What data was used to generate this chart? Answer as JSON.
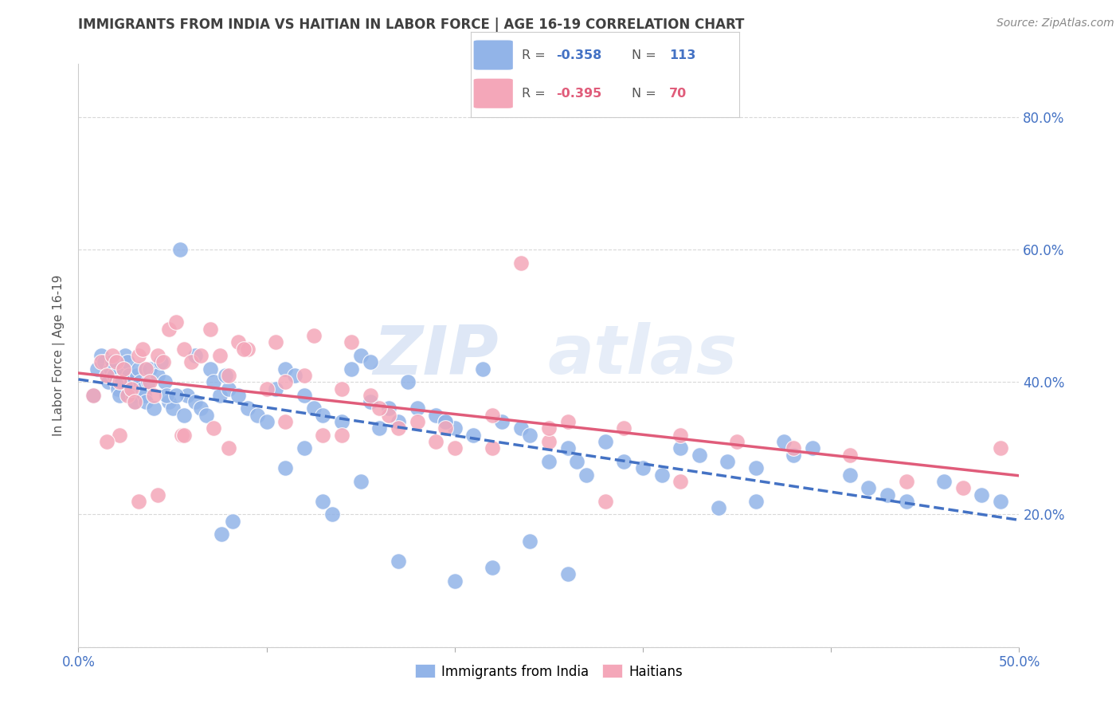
{
  "title": "IMMIGRANTS FROM INDIA VS HAITIAN IN LABOR FORCE | AGE 16-19 CORRELATION CHART",
  "source": "Source: ZipAtlas.com",
  "ylabel": "In Labor Force | Age 16-19",
  "y_ticks": [
    0.0,
    0.2,
    0.4,
    0.6,
    0.8
  ],
  "y_tick_labels": [
    "",
    "20.0%",
    "40.0%",
    "60.0%",
    "80.0%"
  ],
  "xlim": [
    0.0,
    0.5
  ],
  "ylim": [
    0.0,
    0.88
  ],
  "india_R": "-0.358",
  "india_N": "113",
  "haiti_R": "-0.395",
  "haiti_N": "70",
  "india_color": "#92b4e8",
  "haiti_color": "#f4a7b9",
  "india_line_color": "#4472C4",
  "haiti_line_color": "#E05C7A",
  "legend_label_india": "Immigrants from India",
  "legend_label_haiti": "Haitians",
  "watermark_zip": "ZIP",
  "watermark_atlas": "atlas",
  "india_x": [
    0.008,
    0.01,
    0.012,
    0.014,
    0.015,
    0.016,
    0.017,
    0.018,
    0.019,
    0.02,
    0.021,
    0.022,
    0.023,
    0.024,
    0.025,
    0.026,
    0.027,
    0.028,
    0.029,
    0.03,
    0.031,
    0.032,
    0.033,
    0.034,
    0.035,
    0.036,
    0.037,
    0.038,
    0.04,
    0.042,
    0.044,
    0.046,
    0.048,
    0.05,
    0.054,
    0.058,
    0.062,
    0.065,
    0.07,
    0.075,
    0.08,
    0.085,
    0.09,
    0.095,
    0.1,
    0.105,
    0.11,
    0.115,
    0.12,
    0.125,
    0.13,
    0.14,
    0.145,
    0.15,
    0.16,
    0.165,
    0.17,
    0.175,
    0.18,
    0.19,
    0.2,
    0.21,
    0.215,
    0.225,
    0.235,
    0.24,
    0.25,
    0.26,
    0.27,
    0.28,
    0.29,
    0.3,
    0.31,
    0.32,
    0.33,
    0.345,
    0.36,
    0.375,
    0.39,
    0.41,
    0.42,
    0.43,
    0.44,
    0.46,
    0.48,
    0.49,
    0.38,
    0.36,
    0.34,
    0.26,
    0.24,
    0.22,
    0.2,
    0.17,
    0.15,
    0.13,
    0.12,
    0.11,
    0.056,
    0.068,
    0.072,
    0.078,
    0.155,
    0.195,
    0.195,
    0.265,
    0.155,
    0.047,
    0.052,
    0.062,
    0.076,
    0.082,
    0.135
  ],
  "india_y": [
    0.38,
    0.42,
    0.44,
    0.43,
    0.41,
    0.4,
    0.42,
    0.43,
    0.41,
    0.4,
    0.39,
    0.38,
    0.4,
    0.42,
    0.44,
    0.43,
    0.41,
    0.4,
    0.38,
    0.37,
    0.41,
    0.42,
    0.4,
    0.39,
    0.38,
    0.37,
    0.4,
    0.42,
    0.36,
    0.41,
    0.43,
    0.4,
    0.37,
    0.36,
    0.6,
    0.38,
    0.37,
    0.36,
    0.42,
    0.38,
    0.39,
    0.38,
    0.36,
    0.35,
    0.34,
    0.39,
    0.42,
    0.41,
    0.38,
    0.36,
    0.35,
    0.34,
    0.42,
    0.44,
    0.33,
    0.36,
    0.34,
    0.4,
    0.36,
    0.35,
    0.33,
    0.32,
    0.42,
    0.34,
    0.33,
    0.32,
    0.28,
    0.3,
    0.26,
    0.31,
    0.28,
    0.27,
    0.26,
    0.3,
    0.29,
    0.28,
    0.27,
    0.31,
    0.3,
    0.26,
    0.24,
    0.23,
    0.22,
    0.25,
    0.23,
    0.22,
    0.29,
    0.22,
    0.21,
    0.11,
    0.16,
    0.12,
    0.1,
    0.13,
    0.25,
    0.22,
    0.3,
    0.27,
    0.35,
    0.35,
    0.4,
    0.41,
    0.37,
    0.34,
    0.34,
    0.28,
    0.43,
    0.38,
    0.38,
    0.44,
    0.17,
    0.19,
    0.2
  ],
  "haiti_x": [
    0.008,
    0.012,
    0.015,
    0.018,
    0.02,
    0.022,
    0.024,
    0.026,
    0.028,
    0.03,
    0.032,
    0.034,
    0.036,
    0.038,
    0.04,
    0.042,
    0.045,
    0.048,
    0.052,
    0.056,
    0.06,
    0.065,
    0.07,
    0.075,
    0.08,
    0.085,
    0.09,
    0.1,
    0.11,
    0.12,
    0.13,
    0.14,
    0.155,
    0.165,
    0.18,
    0.195,
    0.22,
    0.235,
    0.26,
    0.29,
    0.32,
    0.35,
    0.38,
    0.41,
    0.44,
    0.47,
    0.49,
    0.25,
    0.2,
    0.17,
    0.145,
    0.125,
    0.105,
    0.088,
    0.072,
    0.055,
    0.042,
    0.032,
    0.022,
    0.015,
    0.056,
    0.08,
    0.11,
    0.14,
    0.16,
    0.19,
    0.22,
    0.25,
    0.28,
    0.32
  ],
  "haiti_y": [
    0.38,
    0.43,
    0.41,
    0.44,
    0.43,
    0.4,
    0.42,
    0.38,
    0.39,
    0.37,
    0.44,
    0.45,
    0.42,
    0.4,
    0.38,
    0.44,
    0.43,
    0.48,
    0.49,
    0.45,
    0.43,
    0.44,
    0.48,
    0.44,
    0.41,
    0.46,
    0.45,
    0.39,
    0.4,
    0.41,
    0.32,
    0.39,
    0.38,
    0.35,
    0.34,
    0.33,
    0.35,
    0.58,
    0.34,
    0.33,
    0.32,
    0.31,
    0.3,
    0.29,
    0.25,
    0.24,
    0.3,
    0.31,
    0.3,
    0.33,
    0.46,
    0.47,
    0.46,
    0.45,
    0.33,
    0.32,
    0.23,
    0.22,
    0.32,
    0.31,
    0.32,
    0.3,
    0.34,
    0.32,
    0.36,
    0.31,
    0.3,
    0.33,
    0.22,
    0.25
  ],
  "background_color": "#ffffff",
  "grid_color": "#d8d8d8",
  "title_color": "#404040",
  "tick_color": "#4472C4"
}
